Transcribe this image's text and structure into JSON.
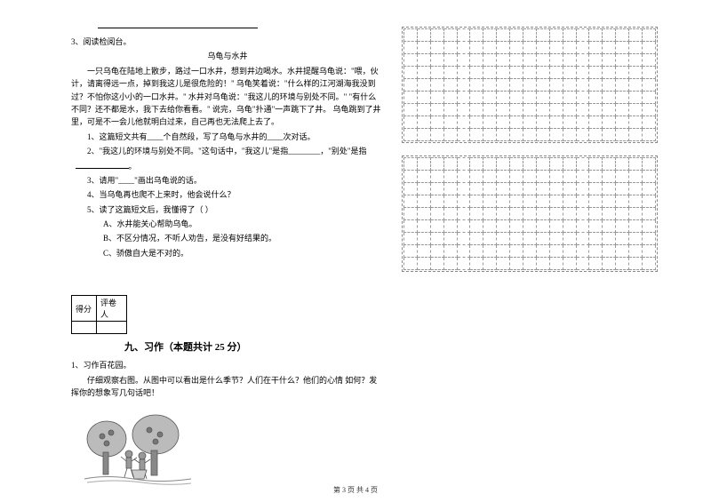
{
  "blank_line_placeholder": "",
  "q3_label": "3、阅读检阅台。",
  "story_title": "乌龟与水井",
  "story_p1": "一只乌龟在陆地上散步，路过一口水井，想到井边喝水。水井提醒乌龟说：\"喂，伙计，请离得远一点，掉到我这儿是很危险的！\" 乌龟笑着说：\"什么样的江河湖海我没到过？不怕你这小小的一口水井。\" 水井对乌龟说：\"我这儿的环境与别处不同。\" \"有什么不同？还不都是水，我下去给你看看。\" 说完，乌龟\"扑通\"一声跳下了井。 乌龟跳到了井里，可是不一会儿他就明白过来，自己再也无法爬上去了。",
  "sq1": "1、这篇短文共有____个自然段，写了乌龟与水井的____次对话。",
  "sq2": "2、\"我这儿的环境与别处不同。\"这句话中，\"我这儿\"是指________，\"别处\"是指",
  "sq3": "3、请用\"____\"画出乌龟说的话。",
  "sq4": "4、当乌龟再也爬不上来时，他会说什么？",
  "sq5": "5、读了这篇短文后，我懂得了（    ）",
  "choice_a": "A、水井能关心帮助乌龟。",
  "choice_b": "B、不区分情况，不听人劝告，是没有好结果的。",
  "choice_c": "C、骄傲自大是不对的。",
  "score_col1": "得分",
  "score_col2": "评卷人",
  "section9": "九、习作（本题共计 25 分）",
  "zuowen_label": "1、习作百花园。",
  "zuowen_prompt": "仔细观察右图。从图中可以看出是什么季节？人们在干什么？他们的心情 如何？发挥你的想象写几句话吧！",
  "footer_text": "第 3 页  共 4 页",
  "grid": {
    "rows": 9,
    "cols": 19
  }
}
